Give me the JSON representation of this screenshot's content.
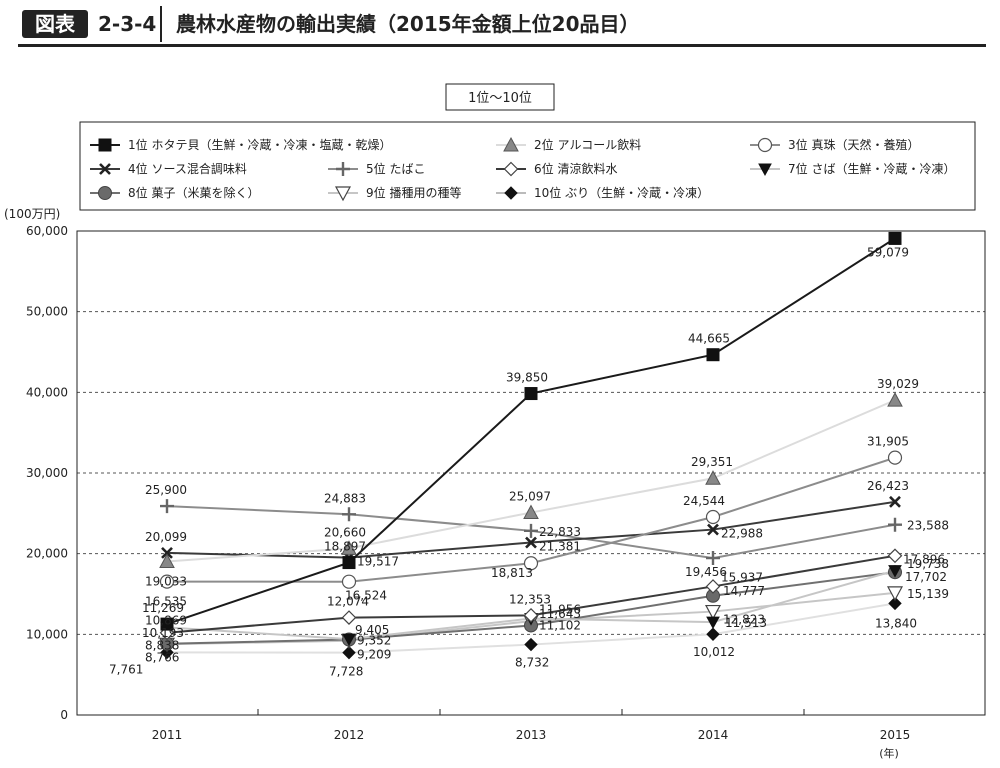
{
  "header": {
    "badge": "図表",
    "figure_number": "2-3-4",
    "title": "農林水産物の輸出実績（2015年金額上位20品目）"
  },
  "chart_data": {
    "type": "line",
    "subtitle": "1位〜10位",
    "ylabel": "(100万円)",
    "xlabel": "(年)",
    "categories": [
      "2011",
      "2012",
      "2013",
      "2014",
      "2015"
    ],
    "ylim": [
      0,
      60000
    ],
    "yticks": [
      0,
      10000,
      20000,
      30000,
      40000,
      50000,
      60000
    ],
    "ytick_labels": [
      "0",
      "10,000",
      "20,000",
      "30,000",
      "40,000",
      "50,000",
      "60,000"
    ],
    "grid": "horizontal dashed",
    "legend_position": "top",
    "series": [
      {
        "name": "1位 ホタテ貝（生鮮・冷蔵・冷凍・塩蔵・乾燥）",
        "values": [
          11269,
          18897,
          39850,
          44665,
          59079
        ],
        "labels": [
          "11,269",
          "18,897",
          "39,850",
          "44,665",
          "59,079"
        ],
        "color": "#1a1a1a",
        "marker": "square"
      },
      {
        "name": "2位 アルコール飲料",
        "values": [
          19033,
          20660,
          25097,
          29351,
          39029
        ],
        "labels": [
          "19,033",
          "20,660",
          "25,097",
          "29,351",
          "39,029"
        ],
        "color": "#dcdcdc",
        "marker": "triangle"
      },
      {
        "name": "3位 真珠（天然・養殖）",
        "values": [
          16535,
          16524,
          18813,
          24544,
          31905
        ],
        "labels": [
          "16,535",
          "16,524",
          "18,813",
          "24,544",
          "31,905"
        ],
        "color": "#8c8c8c",
        "marker": "circle-open"
      },
      {
        "name": "4位 ソース混合調味料",
        "values": [
          20099,
          19517,
          21381,
          22988,
          26423
        ],
        "labels": [
          "20,099",
          "19,517",
          "21,381",
          "22,988",
          "26,423"
        ],
        "color": "#3a3a3a",
        "marker": "x"
      },
      {
        "name": "5位 たばこ",
        "values": [
          25900,
          24883,
          22833,
          19456,
          23588
        ],
        "labels": [
          "25,900",
          "24,883",
          "22,833",
          "19,456",
          "23,588"
        ],
        "color": "#8c8c8c",
        "marker": "plus"
      },
      {
        "name": "6位 清涼飲料水",
        "values": [
          10193,
          12074,
          12353,
          15937,
          19738
        ],
        "labels": [
          "10,193",
          "12,074",
          "12,353",
          "15,937",
          "19,738"
        ],
        "color": "#3a3a3a",
        "marker": "diamond-open"
      },
      {
        "name": "7位 さば（生鮮・冷蔵・冷凍）",
        "values": [
          10869,
          9405,
          11956,
          11513,
          17896
        ],
        "labels": [
          "10,869",
          "9,405",
          "11,956",
          "11,513",
          "17,896"
        ],
        "color": "#c6c6c6",
        "marker": "triangle-down"
      },
      {
        "name": "8位 菓子（米菓を除く）",
        "values": [
          8838,
          9352,
          11102,
          14777,
          17702
        ],
        "labels": [
          "8,838",
          "9,352",
          "11,102",
          "14,777",
          "17,702"
        ],
        "color": "#707070",
        "marker": "circle"
      },
      {
        "name": "9位 播種用の種等",
        "values": [
          8766,
          9209,
          11643,
          12823,
          15139
        ],
        "labels": [
          "8,766",
          "9,209",
          "11,643",
          "12,823",
          "15,139"
        ],
        "color": "#c6c6c6",
        "marker": "triangle-down-open"
      },
      {
        "name": "10位 ぶり（生鮮・冷蔵・冷凍）",
        "values": [
          7761,
          7728,
          8732,
          10012,
          13840
        ],
        "labels": [
          "7,761",
          "7,728",
          "8,732",
          "10,012",
          "13,840"
        ],
        "color": "#e0e0e0",
        "marker": "diamond"
      }
    ]
  }
}
